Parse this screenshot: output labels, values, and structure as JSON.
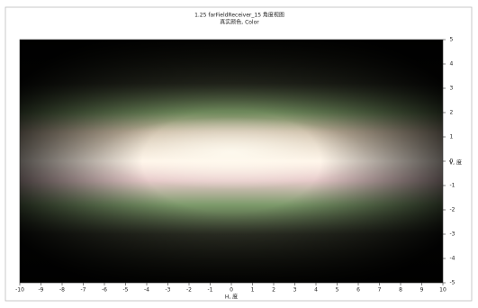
{
  "chart_data": {
    "type": "heatmap",
    "title": "1.25 farFieldReceiver_15 角度视图",
    "subtitle": "真实颜色, Color",
    "xlabel": "H, 度",
    "ylabel": "V, 度",
    "xlim": [
      -10,
      10
    ],
    "xticks": [
      -10,
      -9,
      -8,
      -7,
      -6,
      -5,
      -4,
      -3,
      -2,
      -1,
      0,
      1,
      2,
      3,
      4,
      5,
      6,
      7,
      8,
      9,
      10
    ],
    "ylim": [
      -5,
      5
    ],
    "yticks": [
      -5,
      -4,
      -3,
      -2,
      -1,
      0,
      1,
      2,
      3,
      4,
      5
    ],
    "y_axis_side": "right"
  }
}
